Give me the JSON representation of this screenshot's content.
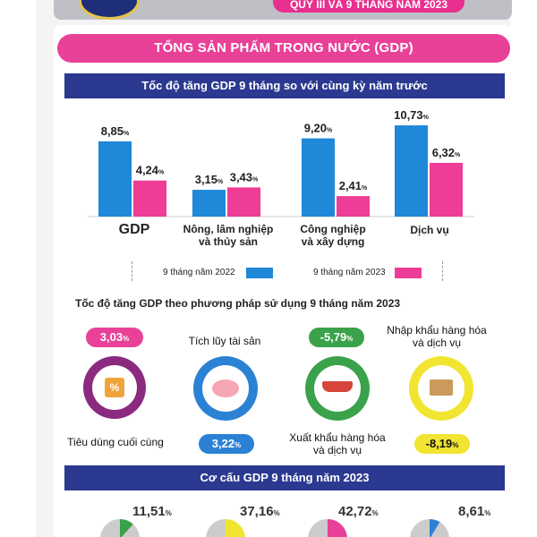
{
  "header": {
    "period_pill": "QUÝ III VÀ 9 THÁNG NĂM 2023"
  },
  "main_title": "TỔNG SẢN PHẨM TRONG NƯỚC (GDP)",
  "growth_section": {
    "title": "Tốc độ tăng GDP 9 tháng so với cùng kỳ năm trước"
  },
  "chart_data": {
    "type": "bar",
    "title": "Tốc độ tăng GDP 9 tháng so với cùng kỳ năm trước",
    "categories": [
      "GDP",
      "Nông, lâm nghiệp và thủy sản",
      "Công nghiệp và xây dựng",
      "Dịch vụ"
    ],
    "series": [
      {
        "name": "9 tháng năm 2022",
        "color": "#1f88d8",
        "values": [
          8.85,
          3.15,
          9.2,
          10.73
        ]
      },
      {
        "name": "9 tháng năm 2023",
        "color": "#ee3d96",
        "values": [
          4.24,
          3.43,
          2.41,
          6.32
        ]
      }
    ],
    "value_labels": {
      "s0": [
        "8,85",
        "3,15",
        "9,20",
        "10,73"
      ],
      "s1": [
        "4,24",
        "3,43",
        "2,41",
        "6,32"
      ]
    },
    "unit": "%",
    "legend_position": "bottom",
    "grid": false,
    "ylim": [
      0,
      12
    ]
  },
  "categories_text": {
    "gdp": "GDP",
    "agri_line1": "Nông, lâm nghiệp",
    "agri_line2": "và thủy sản",
    "ind_line1": "Công nghiệp",
    "ind_line2": "và xây dựng",
    "serv": "Dịch vụ"
  },
  "legend": {
    "s2022": "9 tháng năm 2022",
    "s2023": "9 tháng năm 2023"
  },
  "expenditure": {
    "heading": "Tốc độ tăng GDP theo phương pháp sử dụng 9 tháng năm 2023",
    "consumption": {
      "value": "3,03",
      "label": "Tiêu dùng cuối cùng",
      "color": "#e94198"
    },
    "accumulation": {
      "value": "3,22",
      "label": "Tích lũy tài sản",
      "color": "#2b82d4"
    },
    "exports": {
      "value": "-5,79",
      "label_line1": "Xuất khẩu hàng hóa",
      "label_line2": "và dịch vụ",
      "color": "#3aa24a"
    },
    "imports": {
      "value": "-8,19",
      "label_line1": "Nhập khẩu hàng hóa",
      "label_line2": "và dịch vụ",
      "color": "#f2e532"
    },
    "pct": "%"
  },
  "structure": {
    "title": "Cơ cấu GDP 9 tháng năm 2023",
    "values": [
      "11,51",
      "37,16",
      "42,72",
      "8,61"
    ],
    "pct": "%"
  }
}
